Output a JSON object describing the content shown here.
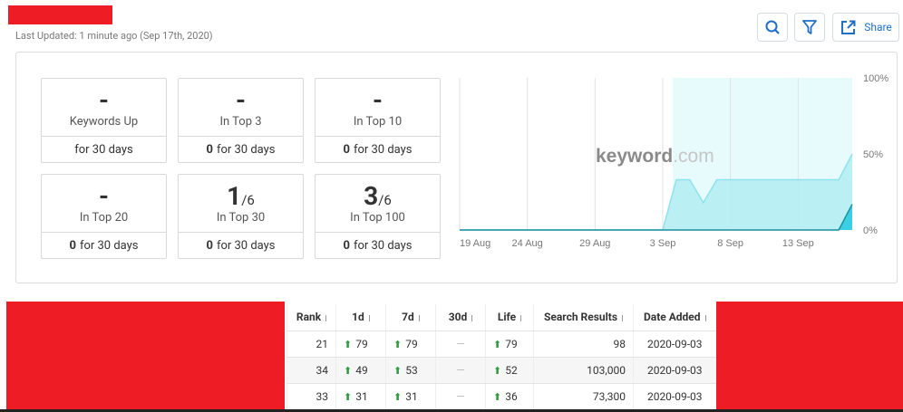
{
  "header": {
    "last_updated": "Last Updated: 1 minute ago (Sep 17th, 2020)",
    "share": "Share"
  },
  "cards": [
    {
      "value": "-",
      "label": "Keywords Up",
      "period": "for 30 days"
    },
    {
      "value": "-",
      "label": "In Top 3",
      "count": "0",
      "period": "for 30 days"
    },
    {
      "value": "-",
      "label": "In Top 10",
      "count": "0",
      "period": "for 30 days"
    },
    {
      "value": "-",
      "label": "In Top 20",
      "count": "0",
      "period": "for 30 days"
    },
    {
      "value": "1",
      "total": "/6",
      "label": "In Top 30",
      "count": "0",
      "period": "for 30 days"
    },
    {
      "value": "3",
      "total": "/6",
      "label": "In Top 100",
      "count": "0",
      "period": "for 30 days"
    }
  ],
  "chart_data": {
    "type": "area",
    "watermark": {
      "main": "keyword",
      "suffix": ".com"
    },
    "categories": [
      "19 Aug",
      null,
      null,
      null,
      null,
      "24 Aug",
      null,
      null,
      null,
      null,
      "29 Aug",
      null,
      null,
      null,
      null,
      "3 Sep",
      null,
      null,
      null,
      null,
      "8 Sep",
      null,
      null,
      null,
      null,
      "13 Sep",
      null,
      null,
      null,
      null
    ],
    "series": [
      {
        "color": "#b5edf3",
        "values": [
          0,
          0,
          0,
          0,
          0,
          0,
          0,
          0,
          0,
          0,
          0,
          0,
          0,
          0,
          0,
          0,
          33,
          33,
          18,
          33,
          33,
          33,
          33,
          33,
          33,
          33,
          33,
          33,
          33,
          50
        ]
      },
      {
        "color": "#2ccbe0",
        "values": [
          0,
          0,
          0,
          0,
          0,
          0,
          0,
          0,
          0,
          0,
          0,
          0,
          0,
          0,
          0,
          0,
          0,
          0,
          0,
          0,
          0,
          0,
          0,
          0,
          0,
          0,
          0,
          0,
          0,
          17
        ]
      }
    ],
    "ylim": [
      0,
      100
    ],
    "yticks": [
      {
        "value": 100,
        "label": "100%"
      },
      {
        "value": 50,
        "label": "50%"
      },
      {
        "value": 0,
        "label": "0%"
      }
    ]
  },
  "table": {
    "columns": [
      "Rank",
      "1d",
      "7d",
      "30d",
      "Life",
      "Search Results",
      "Date Added"
    ],
    "rows": [
      [
        "21",
        "79",
        "79",
        "—",
        "79",
        "98",
        "2020-09-03"
      ],
      [
        "34",
        "49",
        "53",
        "—",
        "52",
        "103,000",
        "2020-09-03"
      ],
      [
        "33",
        "31",
        "31",
        "—",
        "36",
        "73,300",
        "2020-09-03"
      ]
    ]
  }
}
